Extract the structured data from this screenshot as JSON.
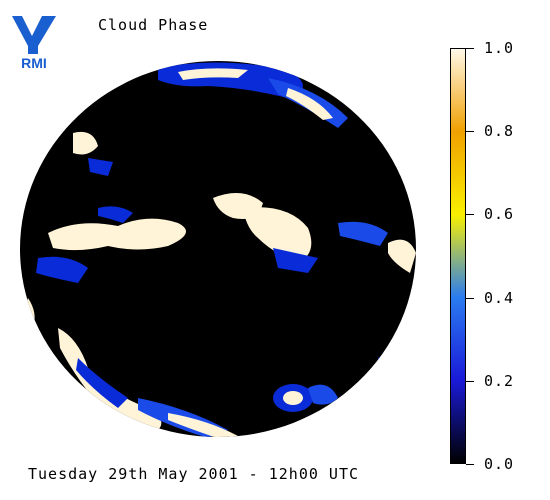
{
  "header": {
    "title": "Cloud Phase",
    "logo_text": "RMI"
  },
  "colorbar": {
    "min": 0.0,
    "max": 1.0,
    "labels": [
      "1.0",
      "0.8",
      "0.6",
      "0.4",
      "0.2",
      "0.0"
    ],
    "colors": [
      "#fff8e8",
      "#f0a000",
      "#f8f000",
      "#2a7cf0",
      "#1a1ad8",
      "#000000"
    ]
  },
  "footer": {
    "timestamp": "Tuesday 29th May 2001 - 12h00 UTC"
  },
  "image": {
    "subject": "earth-disk",
    "background": "#000000",
    "cloud_colors": [
      "#fff8e0",
      "#0a2bd8",
      "#1a60ff"
    ]
  },
  "colors": {
    "logo_blue": "#1a5fd0",
    "page_bg": "#ffffff"
  }
}
